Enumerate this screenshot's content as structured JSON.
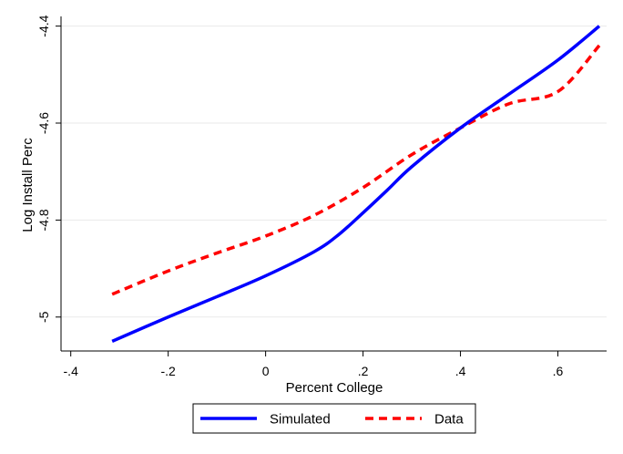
{
  "chart_data": {
    "type": "line",
    "title": "",
    "xlabel": "Percent College",
    "ylabel": "Log Install Perc",
    "xlim": [
      -0.42,
      0.7
    ],
    "ylim": [
      -5.07,
      -4.38
    ],
    "x_ticks": [
      {
        "value": -0.4,
        "label": "-.4"
      },
      {
        "value": -0.2,
        "label": "-.2"
      },
      {
        "value": 0,
        "label": "0"
      },
      {
        "value": 0.2,
        "label": ".2"
      },
      {
        "value": 0.4,
        "label": ".4"
      },
      {
        "value": 0.6,
        "label": ".6"
      }
    ],
    "y_ticks": [
      {
        "value": -5.0,
        "label": "-5"
      },
      {
        "value": -4.8,
        "label": "-4.8"
      },
      {
        "value": -4.6,
        "label": "-4.6"
      },
      {
        "value": -4.4,
        "label": "-4.4"
      }
    ],
    "grid": "horizontal",
    "legend_position": "bottom",
    "series": [
      {
        "name": "Simulated",
        "color": "#0000ff",
        "style": "solid",
        "points": [
          [
            -0.315,
            -5.05
          ],
          [
            -0.2,
            -5.0
          ],
          [
            -0.1,
            -4.958
          ],
          [
            0.0,
            -4.915
          ],
          [
            0.1,
            -4.865
          ],
          [
            0.15,
            -4.83
          ],
          [
            0.2,
            -4.785
          ],
          [
            0.25,
            -4.738
          ],
          [
            0.3,
            -4.69
          ],
          [
            0.4,
            -4.61
          ],
          [
            0.5,
            -4.54
          ],
          [
            0.6,
            -4.47
          ],
          [
            0.685,
            -4.4
          ]
        ]
      },
      {
        "name": "Data",
        "color": "#ff0000",
        "style": "dashed",
        "points": [
          [
            -0.315,
            -4.953
          ],
          [
            -0.2,
            -4.905
          ],
          [
            -0.1,
            -4.868
          ],
          [
            0.0,
            -4.833
          ],
          [
            0.1,
            -4.79
          ],
          [
            0.2,
            -4.733
          ],
          [
            0.3,
            -4.665
          ],
          [
            0.4,
            -4.61
          ],
          [
            0.5,
            -4.56
          ],
          [
            0.6,
            -4.535
          ],
          [
            0.685,
            -4.44
          ]
        ]
      }
    ]
  }
}
